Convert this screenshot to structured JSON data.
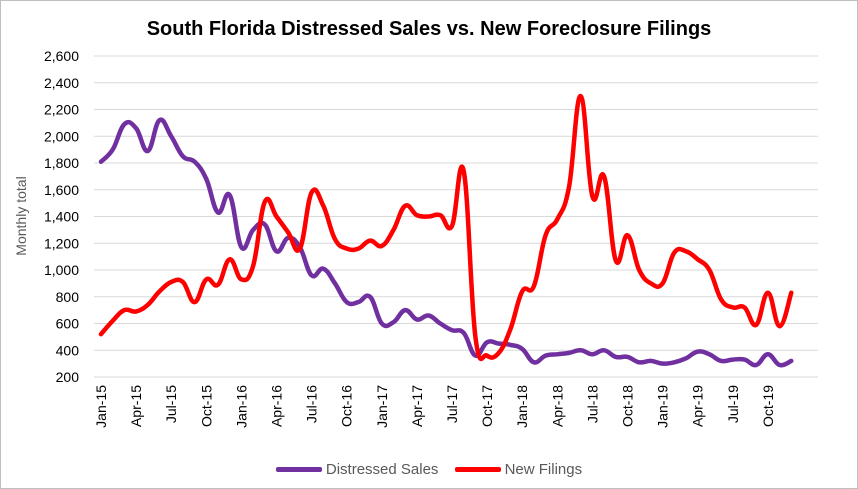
{
  "chart_data": {
    "type": "line",
    "title": "South Florida  Distressed Sales vs. New Foreclosure Filings",
    "ylabel": "Monthly total",
    "xlabel": "",
    "ylim": [
      200,
      2600
    ],
    "y_ticks": [
      200,
      400,
      600,
      800,
      1000,
      1200,
      1400,
      1600,
      1800,
      2000,
      2200,
      2400,
      2600
    ],
    "y_tick_labels": [
      "200",
      "400",
      "600",
      "800",
      "1,000",
      "1,200",
      "1,400",
      "1,600",
      "1,800",
      "2,000",
      "2,200",
      "2,400",
      "2,600"
    ],
    "x_tick_labels": [
      "Jan-15",
      "Apr-15",
      "Jul-15",
      "Oct-15",
      "Jan-16",
      "Apr-16",
      "Jul-16",
      "Oct-16",
      "Jan-17",
      "Apr-17",
      "Jul-17",
      "Oct-17",
      "Jan-18",
      "Apr-18",
      "Jul-18",
      "Oct-18",
      "Jan-19",
      "Apr-19",
      "Jul-19",
      "Oct-19"
    ],
    "grid": true,
    "legend_position": "bottom",
    "x": [
      "Jan-15",
      "Feb-15",
      "Mar-15",
      "Apr-15",
      "May-15",
      "Jun-15",
      "Jul-15",
      "Aug-15",
      "Sep-15",
      "Oct-15",
      "Nov-15",
      "Dec-15",
      "Jan-16",
      "Feb-16",
      "Mar-16",
      "Apr-16",
      "May-16",
      "Jun-16",
      "Jul-16",
      "Aug-16",
      "Sep-16",
      "Oct-16",
      "Nov-16",
      "Dec-16",
      "Jan-17",
      "Feb-17",
      "Mar-17",
      "Apr-17",
      "May-17",
      "Jun-17",
      "Jul-17",
      "Aug-17",
      "Sep-17",
      "Oct-17",
      "Nov-17",
      "Dec-17",
      "Jan-18",
      "Feb-18",
      "Mar-18",
      "Apr-18",
      "May-18",
      "Jun-18",
      "Jul-18",
      "Aug-18",
      "Sep-18",
      "Oct-18",
      "Nov-18",
      "Dec-18",
      "Jan-19",
      "Feb-19",
      "Mar-19",
      "Apr-19",
      "May-19",
      "Jun-19",
      "Jul-19",
      "Aug-19",
      "Sep-19",
      "Oct-19",
      "Nov-19",
      "Dec-19"
    ],
    "series": [
      {
        "name": "Distressed Sales",
        "color": "#7030a0",
        "values": [
          1810,
          1900,
          2090,
          2060,
          1890,
          2120,
          2000,
          1850,
          1810,
          1680,
          1430,
          1560,
          1170,
          1300,
          1340,
          1140,
          1240,
          1170,
          960,
          1010,
          900,
          760,
          760,
          800,
          600,
          610,
          700,
          630,
          660,
          600,
          550,
          530,
          360,
          460,
          450,
          440,
          410,
          310,
          360,
          370,
          380,
          400,
          370,
          400,
          350,
          350,
          310,
          320,
          300,
          310,
          340,
          390,
          370,
          320,
          330,
          330,
          290,
          370,
          290,
          320
        ]
      },
      {
        "name": "New Filings",
        "color": "#ff0000",
        "values": [
          520,
          620,
          700,
          690,
          740,
          840,
          910,
          910,
          760,
          930,
          890,
          1080,
          930,
          1030,
          1510,
          1400,
          1280,
          1160,
          1580,
          1480,
          1230,
          1160,
          1160,
          1220,
          1180,
          1300,
          1480,
          1410,
          1400,
          1410,
          1330,
          1740,
          500,
          360,
          380,
          560,
          840,
          880,
          1260,
          1380,
          1620,
          2300,
          1550,
          1700,
          1070,
          1260,
          1000,
          900,
          900,
          1130,
          1140,
          1080,
          1000,
          780,
          720,
          720,
          590,
          830,
          580,
          830
        ]
      }
    ]
  }
}
